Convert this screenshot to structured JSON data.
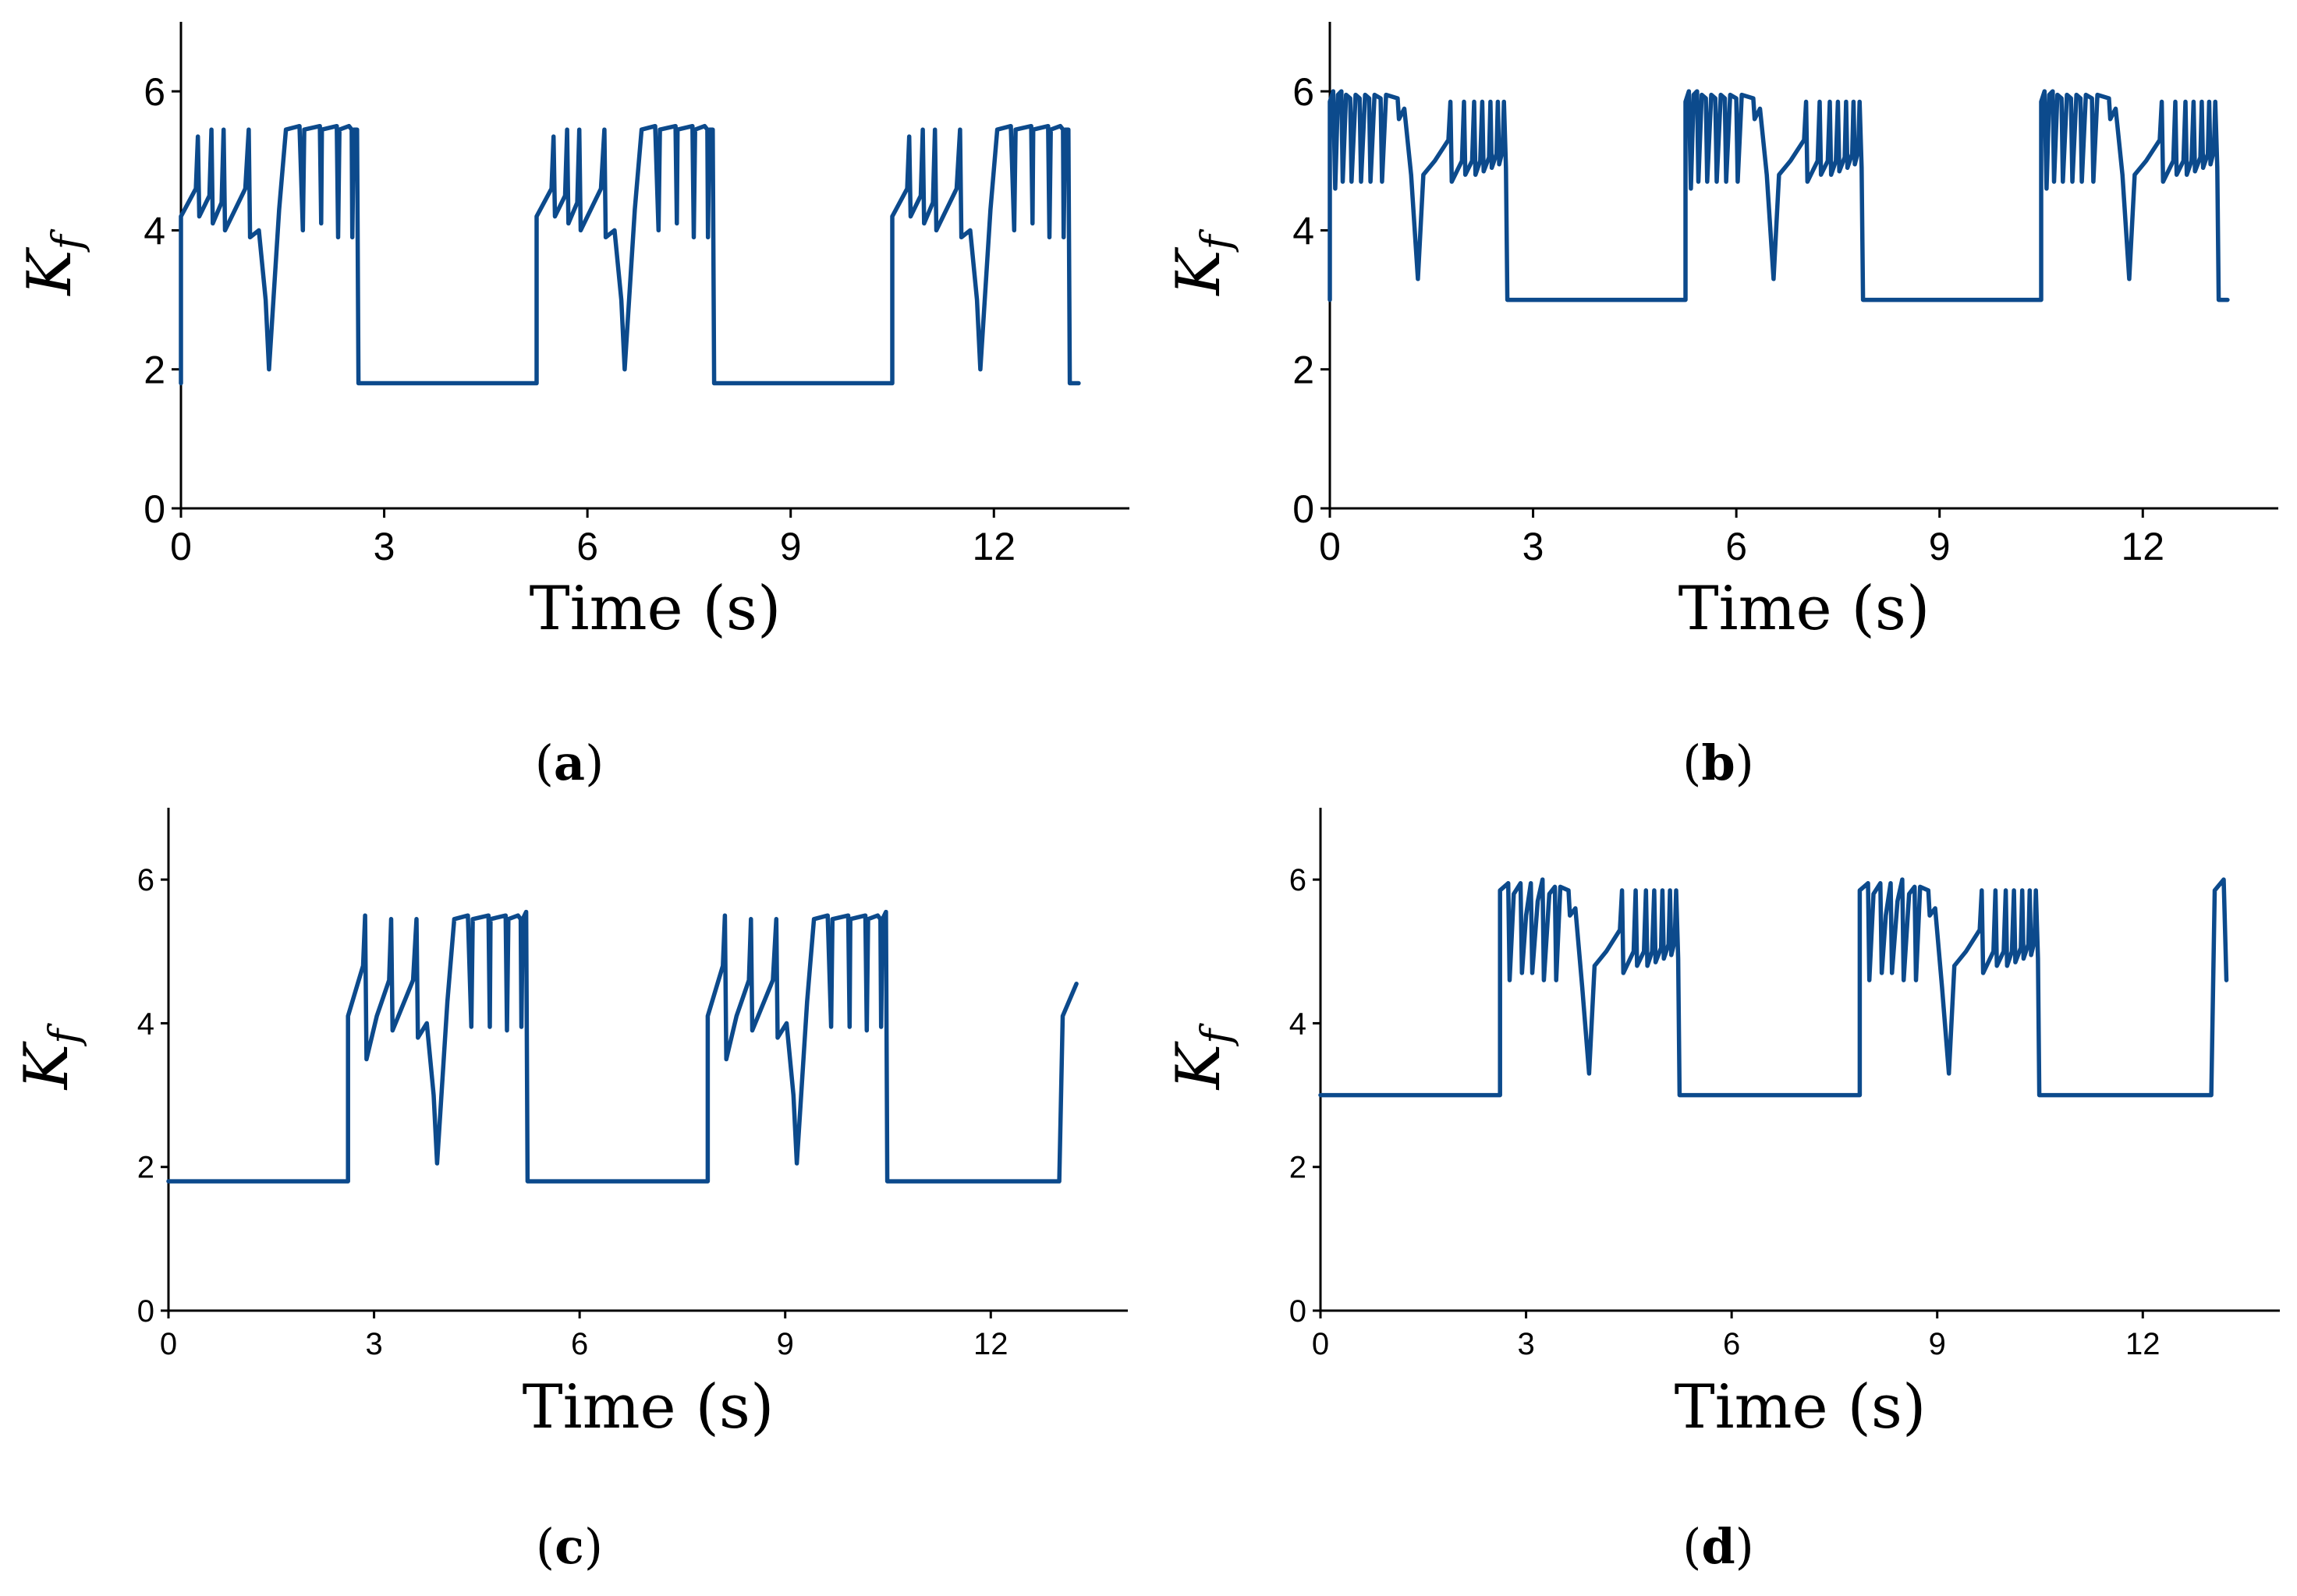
{
  "line_color": "#0c4a8c",
  "chart_data": [
    {
      "id": "a",
      "type": "line",
      "caption_letter": "a",
      "caption_open": "(",
      "caption_close": ")",
      "xlabel": "Time (s)",
      "ylabel_main": "K",
      "ylabel_sub": "f",
      "xlim": [
        0,
        14
      ],
      "ylim": [
        0,
        7
      ],
      "xticks": [
        0,
        3,
        6,
        9,
        12
      ],
      "yticks": [
        0,
        2,
        4,
        6
      ],
      "xtick_labels": [
        "0",
        "3",
        "6",
        "9",
        "12"
      ],
      "ytick_labels": [
        "0",
        "2",
        "4",
        "6"
      ],
      "baseline": 1.8,
      "active_segments": [
        [
          0.0,
          2.62
        ],
        [
          5.25,
          7.87
        ],
        [
          10.5,
          13.12
        ]
      ],
      "episode_points": [
        [
          0.0,
          4.2
        ],
        [
          0.22,
          4.6
        ],
        [
          0.25,
          5.35
        ],
        [
          0.27,
          4.2
        ],
        [
          0.42,
          4.5
        ],
        [
          0.45,
          5.45
        ],
        [
          0.47,
          4.1
        ],
        [
          0.6,
          4.4
        ],
        [
          0.63,
          5.45
        ],
        [
          0.65,
          4.0
        ],
        [
          0.95,
          4.6
        ],
        [
          1.0,
          5.45
        ],
        [
          1.02,
          3.9
        ],
        [
          1.15,
          4.0
        ],
        [
          1.25,
          3.0
        ],
        [
          1.3,
          2.0
        ],
        [
          1.45,
          4.3
        ],
        [
          1.55,
          5.45
        ],
        [
          1.75,
          5.5
        ],
        [
          1.8,
          4.0
        ],
        [
          1.82,
          5.45
        ],
        [
          2.05,
          5.5
        ],
        [
          2.07,
          4.1
        ],
        [
          2.08,
          5.45
        ],
        [
          2.3,
          5.5
        ],
        [
          2.32,
          3.9
        ],
        [
          2.34,
          5.45
        ],
        [
          2.48,
          5.5
        ],
        [
          2.52,
          5.45
        ],
        [
          2.53,
          3.9
        ],
        [
          2.55,
          5.45
        ],
        [
          2.6,
          5.45
        ],
        [
          2.62,
          1.8
        ]
      ],
      "last_episode_end": 13.12,
      "final_flat_end": 13.25
    },
    {
      "id": "b",
      "type": "line",
      "caption_letter": "b",
      "caption_open": "(",
      "caption_close": ")",
      "xlabel": "Time (s)",
      "ylabel_main": "K",
      "ylabel_sub": "f",
      "xlim": [
        0,
        14
      ],
      "ylim": [
        0,
        7
      ],
      "xticks": [
        0,
        3,
        6,
        9,
        12
      ],
      "yticks": [
        0,
        2,
        4,
        6
      ],
      "xtick_labels": [
        "0",
        "3",
        "6",
        "9",
        "12"
      ],
      "ytick_labels": [
        "0",
        "2",
        "4",
        "6"
      ],
      "baseline": 3.0,
      "active_segments": [
        [
          0.0,
          2.62
        ],
        [
          5.25,
          7.87
        ],
        [
          10.5,
          13.12
        ]
      ],
      "episode_points": [
        [
          0.0,
          5.85
        ],
        [
          0.05,
          6.0
        ],
        [
          0.08,
          4.6
        ],
        [
          0.12,
          5.95
        ],
        [
          0.17,
          6.0
        ],
        [
          0.19,
          4.7
        ],
        [
          0.24,
          5.95
        ],
        [
          0.3,
          5.9
        ],
        [
          0.32,
          4.7
        ],
        [
          0.38,
          5.95
        ],
        [
          0.44,
          5.9
        ],
        [
          0.46,
          4.7
        ],
        [
          0.52,
          5.95
        ],
        [
          0.58,
          5.9
        ],
        [
          0.6,
          4.7
        ],
        [
          0.66,
          5.95
        ],
        [
          0.75,
          5.9
        ],
        [
          0.77,
          4.7
        ],
        [
          0.83,
          5.95
        ],
        [
          1.0,
          5.9
        ],
        [
          1.02,
          5.6
        ],
        [
          1.1,
          5.75
        ],
        [
          1.2,
          4.8
        ],
        [
          1.3,
          3.3
        ],
        [
          1.38,
          4.8
        ],
        [
          1.55,
          5.0
        ],
        [
          1.75,
          5.3
        ],
        [
          1.78,
          5.85
        ],
        [
          1.8,
          4.7
        ],
        [
          1.95,
          5.0
        ],
        [
          1.98,
          5.85
        ],
        [
          2.0,
          4.8
        ],
        [
          2.1,
          5.0
        ],
        [
          2.13,
          5.85
        ],
        [
          2.15,
          4.8
        ],
        [
          2.22,
          5.0
        ],
        [
          2.25,
          5.85
        ],
        [
          2.27,
          4.85
        ],
        [
          2.35,
          5.05
        ],
        [
          2.37,
          5.85
        ],
        [
          2.39,
          4.9
        ],
        [
          2.46,
          5.1
        ],
        [
          2.48,
          5.85
        ],
        [
          2.5,
          4.95
        ],
        [
          2.55,
          5.15
        ],
        [
          2.57,
          5.85
        ],
        [
          2.6,
          4.9
        ],
        [
          2.62,
          3.0
        ]
      ],
      "last_episode_end": 13.12,
      "final_flat_end": 13.25
    },
    {
      "id": "c",
      "type": "line",
      "caption_letter": "c",
      "caption_open": "(",
      "caption_close": ")",
      "xlabel": "Time (s)",
      "ylabel_main": "K",
      "ylabel_sub": "f",
      "xlim": [
        0,
        14
      ],
      "ylim": [
        0,
        7
      ],
      "xticks": [
        0,
        3,
        6,
        9,
        12
      ],
      "yticks": [
        0,
        2,
        4,
        6
      ],
      "xtick_labels": [
        "0",
        "3",
        "6",
        "9",
        "12"
      ],
      "ytick_labels": [
        "0",
        "2",
        "4",
        "6"
      ],
      "baseline": 1.8,
      "active_segments": [
        [
          2.62,
          5.25
        ],
        [
          7.87,
          10.5
        ]
      ],
      "episode_points": [
        [
          0.0,
          4.1
        ],
        [
          0.22,
          4.8
        ],
        [
          0.25,
          5.5
        ],
        [
          0.27,
          3.5
        ],
        [
          0.42,
          4.1
        ],
        [
          0.6,
          4.6
        ],
        [
          0.63,
          5.45
        ],
        [
          0.65,
          3.9
        ],
        [
          0.95,
          4.6
        ],
        [
          1.0,
          5.45
        ],
        [
          1.02,
          3.8
        ],
        [
          1.15,
          4.0
        ],
        [
          1.25,
          3.0
        ],
        [
          1.3,
          2.05
        ],
        [
          1.45,
          4.3
        ],
        [
          1.55,
          5.45
        ],
        [
          1.75,
          5.5
        ],
        [
          1.8,
          3.95
        ],
        [
          1.82,
          5.45
        ],
        [
          2.05,
          5.5
        ],
        [
          2.07,
          3.95
        ],
        [
          2.08,
          5.45
        ],
        [
          2.3,
          5.5
        ],
        [
          2.32,
          3.9
        ],
        [
          2.34,
          5.45
        ],
        [
          2.48,
          5.5
        ],
        [
          2.52,
          5.45
        ],
        [
          2.53,
          3.95
        ],
        [
          2.55,
          5.45
        ],
        [
          2.6,
          5.55
        ],
        [
          2.62,
          1.8
        ]
      ],
      "tail_start": 13.0,
      "tail_points": [
        [
          13.0,
          1.8
        ],
        [
          13.05,
          4.1
        ],
        [
          13.25,
          4.55
        ]
      ]
    },
    {
      "id": "d",
      "type": "line",
      "caption_letter": "d",
      "caption_open": "(",
      "caption_close": ")",
      "xlabel": "Time (s)",
      "ylabel_main": "K",
      "ylabel_sub": "f",
      "xlim": [
        0,
        14
      ],
      "ylim": [
        0,
        7
      ],
      "xticks": [
        0,
        3,
        6,
        9,
        12
      ],
      "yticks": [
        0,
        2,
        4,
        6
      ],
      "xtick_labels": [
        "0",
        "3",
        "6",
        "9",
        "12"
      ],
      "ytick_labels": [
        "0",
        "2",
        "4",
        "6"
      ],
      "baseline": 3.0,
      "active_segments": [
        [
          2.62,
          5.25
        ],
        [
          7.87,
          10.5
        ]
      ],
      "episode_points": [
        [
          0.0,
          5.85
        ],
        [
          0.12,
          5.95
        ],
        [
          0.14,
          4.6
        ],
        [
          0.2,
          5.8
        ],
        [
          0.3,
          5.95
        ],
        [
          0.32,
          4.7
        ],
        [
          0.38,
          5.5
        ],
        [
          0.45,
          5.95
        ],
        [
          0.47,
          4.7
        ],
        [
          0.55,
          5.7
        ],
        [
          0.62,
          6.0
        ],
        [
          0.64,
          4.6
        ],
        [
          0.72,
          5.8
        ],
        [
          0.8,
          5.9
        ],
        [
          0.82,
          4.6
        ],
        [
          0.88,
          5.9
        ],
        [
          1.0,
          5.85
        ],
        [
          1.02,
          5.5
        ],
        [
          1.1,
          5.6
        ],
        [
          1.2,
          4.5
        ],
        [
          1.3,
          3.3
        ],
        [
          1.38,
          4.8
        ],
        [
          1.55,
          5.0
        ],
        [
          1.75,
          5.3
        ],
        [
          1.78,
          5.85
        ],
        [
          1.8,
          4.7
        ],
        [
          1.95,
          5.0
        ],
        [
          1.98,
          5.85
        ],
        [
          2.0,
          4.8
        ],
        [
          2.1,
          5.0
        ],
        [
          2.13,
          5.85
        ],
        [
          2.15,
          4.8
        ],
        [
          2.22,
          5.0
        ],
        [
          2.25,
          5.85
        ],
        [
          2.27,
          4.85
        ],
        [
          2.35,
          5.05
        ],
        [
          2.37,
          5.85
        ],
        [
          2.39,
          4.9
        ],
        [
          2.46,
          5.1
        ],
        [
          2.48,
          5.85
        ],
        [
          2.5,
          4.95
        ],
        [
          2.55,
          5.15
        ],
        [
          2.57,
          5.85
        ],
        [
          2.6,
          4.9
        ],
        [
          2.62,
          3.0
        ]
      ],
      "tail_start": 13.0,
      "tail_points": [
        [
          13.0,
          3.0
        ],
        [
          13.05,
          5.85
        ],
        [
          13.18,
          6.0
        ],
        [
          13.22,
          4.6
        ]
      ]
    }
  ]
}
